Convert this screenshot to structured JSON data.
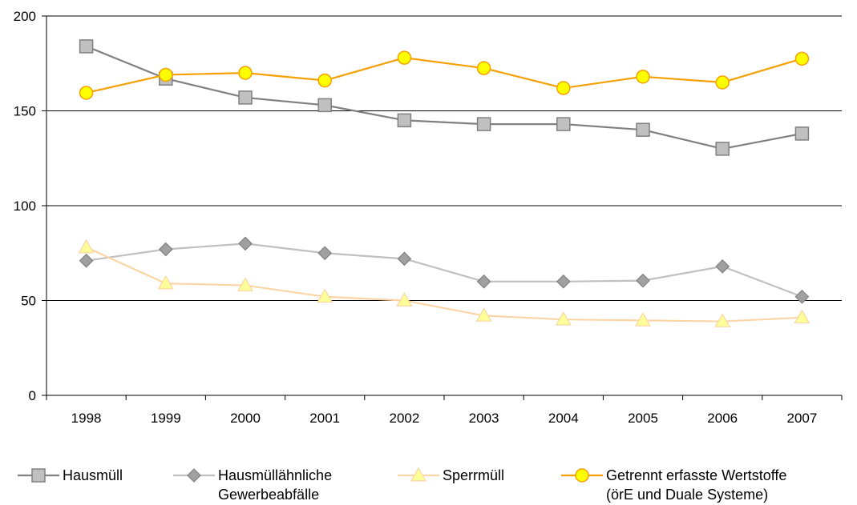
{
  "chart_data": {
    "type": "line",
    "title": "",
    "xlabel": "",
    "ylabel": "",
    "x": [
      "1998",
      "1999",
      "2000",
      "2001",
      "2002",
      "2003",
      "2004",
      "2005",
      "2006",
      "2007"
    ],
    "ylim": [
      0,
      200
    ],
    "yticks": [
      "0",
      "50",
      "100",
      "150",
      "200"
    ],
    "grid": "horizontal",
    "legend_position": "bottom",
    "series": [
      {
        "name_lines": [
          "Hausmüll"
        ],
        "marker": "square",
        "color": "#808080",
        "marker_fill": "#c0c0c0",
        "values": [
          184,
          167,
          157,
          153,
          145,
          143,
          143,
          140,
          130,
          138
        ]
      },
      {
        "name_lines": [
          "Hausmüllähnliche",
          "Gewerbeabfälle"
        ],
        "marker": "diamond",
        "color": "#c0c0c0",
        "marker_fill": "#a0a0a0",
        "values": [
          71,
          77,
          80,
          75,
          72,
          60,
          60,
          60.5,
          68,
          52
        ]
      },
      {
        "name_lines": [
          "Sperrmüll"
        ],
        "marker": "triangle",
        "color": "#fbd5a5",
        "marker_fill": "#ffff99",
        "values": [
          78,
          59,
          58,
          52,
          50,
          42,
          40,
          39.5,
          39,
          41
        ]
      },
      {
        "name_lines": [
          "Getrennt erfasste Wertstoffe",
          "(örE und Duale Systeme)"
        ],
        "marker": "circle",
        "color": "#f5a000",
        "marker_fill": "#ffff00",
        "values": [
          159.5,
          169,
          170,
          166,
          178,
          172.5,
          162,
          168,
          165,
          177.5
        ]
      }
    ]
  }
}
